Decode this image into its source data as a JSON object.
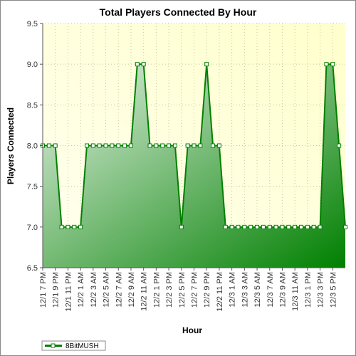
{
  "chart_data": {
    "type": "area",
    "title": "Total Players Connected By Hour",
    "xlabel": "Hour",
    "ylabel": "Players Connected",
    "ylim": [
      6.5,
      9.5
    ],
    "yticks": [
      "6.5",
      "7.0",
      "7.5",
      "8.0",
      "8.5",
      "9.0",
      "9.5"
    ],
    "x_tick_labels": [
      "12/1 7 PM",
      "12/1 9 PM",
      "12/1 11 PM",
      "12/2 1 AM",
      "12/2 3 AM",
      "12/2 5 AM",
      "12/2 7 AM",
      "12/2 9 AM",
      "12/2 11 AM",
      "12/2 1 PM",
      "12/2 3 PM",
      "12/2 5 PM",
      "12/2 7 PM",
      "12/2 9 PM",
      "12/2 11 PM",
      "12/3 1 AM",
      "12/3 3 AM",
      "12/3 5 AM",
      "12/3 7 AM",
      "12/3 9 AM",
      "12/3 11 AM",
      "12/3 1 PM",
      "12/3 3 PM",
      "12/3 5 PM"
    ],
    "grid": true,
    "legend_position": "bottom-left",
    "series": [
      {
        "name": "8BitMUSH",
        "color": "#008000",
        "values": [
          8,
          8,
          8,
          7,
          7,
          7,
          7,
          8,
          8,
          8,
          8,
          8,
          8,
          8,
          8,
          9,
          9,
          8,
          8,
          8,
          8,
          8,
          7,
          8,
          8,
          8,
          9,
          8,
          8,
          7,
          7,
          7,
          7,
          7,
          7,
          7,
          7,
          7,
          7,
          7,
          7,
          7,
          7,
          7,
          7,
          9,
          9,
          8,
          7
        ]
      }
    ]
  },
  "colors": {
    "plot_background": "#ffffe0",
    "series_line": "#008000",
    "grid": "#c8c8a0"
  }
}
